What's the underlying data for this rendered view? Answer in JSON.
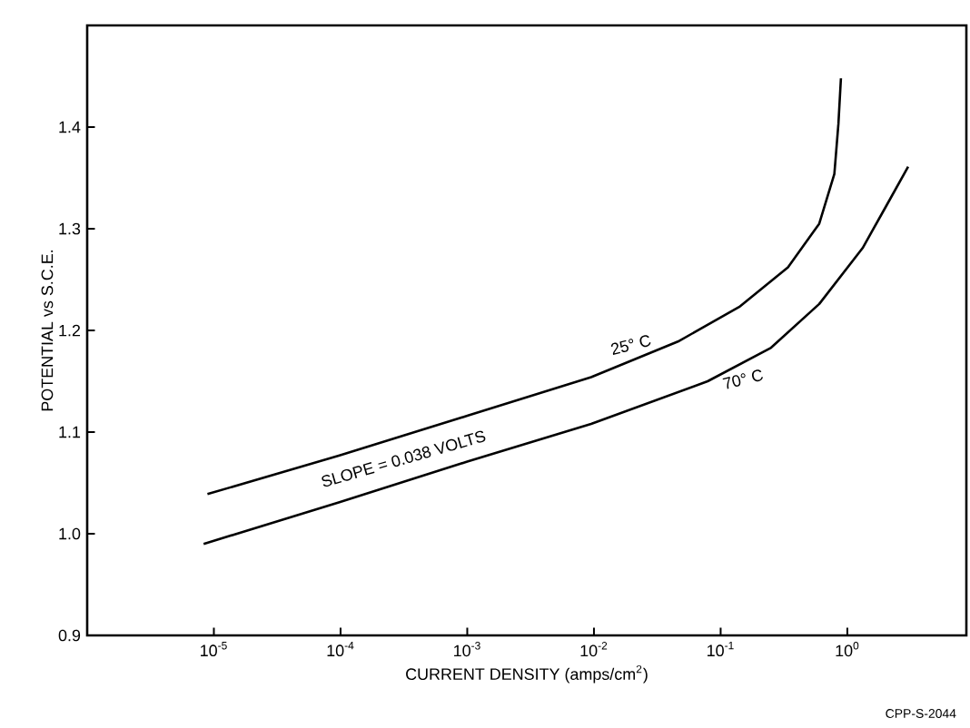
{
  "chart_data": {
    "type": "line",
    "xlabel": "CURRENT DENSITY (amps/cm$^{2}$)",
    "ylabel": "POTENTIAL vs S.C.E.",
    "log": "x",
    "xlim": [
      1e-06,
      8.7
    ],
    "ylim": [
      0.9,
      1.5
    ],
    "xticks": [
      {
        "value": 1e-05,
        "label": "10$^{-5}$"
      },
      {
        "value": 0.0001,
        "label": "10$^{-4}$"
      },
      {
        "value": 0.001,
        "label": "10$^{-3}$"
      },
      {
        "value": 0.01,
        "label": "10$^{-2}$"
      },
      {
        "value": 0.1,
        "label": "10$^{-1}$"
      },
      {
        "value": 1,
        "label": "10$^{0}$"
      }
    ],
    "yticks": [
      0.9,
      {
        "value": 1.0,
        "label": "1.0"
      },
      1.1,
      1.2,
      1.3,
      1.4
    ],
    "legend": false,
    "grid": false,
    "marker": "none",
    "line_style": "solid",
    "series": [
      {
        "name": "25° C",
        "color": "#000000",
        "x": [
          8.9e-06,
          9.8e-05,
          0.001,
          0.0095,
          0.046,
          0.14,
          0.34,
          0.6,
          0.79,
          0.85,
          0.89
        ],
        "values": [
          1.039,
          1.077,
          1.116,
          1.154,
          1.189,
          1.223,
          1.262,
          1.305,
          1.354,
          1.403,
          1.448
        ]
      },
      {
        "name": "70° C",
        "color": "#000000",
        "x": [
          8.3e-06,
          9.8e-05,
          0.001,
          0.0095,
          0.079,
          0.25,
          0.6,
          1.32,
          2.04,
          3.02
        ],
        "values": [
          0.99,
          1.031,
          1.071,
          1.108,
          1.15,
          1.183,
          1.226,
          1.281,
          1.323,
          1.361
        ]
      }
    ],
    "annotations": [
      "SLOPE = 0.038 VOLTS",
      "CPP-S-2044"
    ]
  }
}
